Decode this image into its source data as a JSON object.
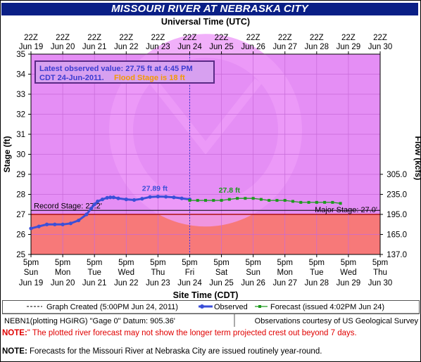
{
  "title": "MISSOURI RIVER AT NEBRASKA CITY",
  "chart_data": {
    "type": "line",
    "top_axis_label": "Universal Time (UTC)",
    "top_tick_labels": [
      [
        "22Z",
        "Jun 19"
      ],
      [
        "22Z",
        "Jun 20"
      ],
      [
        "22Z",
        "Jun 21"
      ],
      [
        "22Z",
        "Jun 22"
      ],
      [
        "22Z",
        "Jun 23"
      ],
      [
        "22Z",
        "Jun 24"
      ],
      [
        "22Z",
        "Jun 25"
      ],
      [
        "22Z",
        "Jun 26"
      ],
      [
        "22Z",
        "Jun 27"
      ],
      [
        "22Z",
        "Jun 28"
      ],
      [
        "22Z",
        "Jun 29"
      ],
      [
        "22Z",
        "Jun 30"
      ]
    ],
    "xlabel": "Site Time (CDT)",
    "bottom_tick_labels": [
      [
        "5pm",
        "Sun",
        "Jun 19"
      ],
      [
        "5pm",
        "Mon",
        "Jun 20"
      ],
      [
        "5pm",
        "Tue",
        "Jun 21"
      ],
      [
        "5pm",
        "Wed",
        "Jun 22"
      ],
      [
        "5pm",
        "Thu",
        "Jun 23"
      ],
      [
        "5pm",
        "Fri",
        "Jun 24"
      ],
      [
        "5pm",
        "Sat",
        "Jun 25"
      ],
      [
        "5pm",
        "Sun",
        "Jun 26"
      ],
      [
        "5pm",
        "Mon",
        "Jun 27"
      ],
      [
        "5pm",
        "Tue",
        "Jun 28"
      ],
      [
        "5pm",
        "Wed",
        "Jun 29"
      ],
      [
        "5pm",
        "Thu",
        "Jun 30"
      ]
    ],
    "ylabel": "Stage (ft)",
    "ylim": [
      25,
      35
    ],
    "yticks": [
      25,
      26,
      27,
      28,
      29,
      30,
      31,
      32,
      33,
      34,
      35
    ],
    "y2label": "Flow (kcfs)",
    "y2ticks": [
      {
        "stage": 25,
        "label": "137.0"
      },
      {
        "stage": 26,
        "label": "165.0"
      },
      {
        "stage": 27,
        "label": "195.0"
      },
      {
        "stage": 28,
        "label": "235.0"
      },
      {
        "stage": 29,
        "label": "305.0"
      }
    ],
    "x_unit": "days after Jun 19 5pm CDT",
    "xlim": [
      0,
      11
    ],
    "current_time_x": 5.0,
    "flood_zone": {
      "from": 25,
      "to": 27,
      "color": "#f77979"
    },
    "background_color": "#e58ef5",
    "record_stage": {
      "value": 27.2,
      "label": "Record Stage: 27.2'"
    },
    "major_stage": {
      "value": 27.0,
      "label": "Major Stage: 27.0'"
    },
    "info_box": {
      "line1": "Latest observed value: 27.75 ft at 4:45 PM",
      "line2a": "CDT 24-Jun-2011.",
      "line2b": "Flood Stage is 18 ft"
    },
    "series": [
      {
        "name": "Observed",
        "color": "#3b4fd8",
        "x": [
          0.0,
          0.25,
          0.5,
          0.75,
          1.0,
          1.25,
          1.5,
          1.75,
          1.9,
          2.0,
          2.1,
          2.25,
          2.4,
          2.5,
          2.6,
          2.75,
          3.0,
          3.25,
          3.5,
          3.75,
          4.0,
          4.25,
          4.5,
          4.75,
          5.0
        ],
        "y": [
          26.3,
          26.4,
          26.5,
          26.5,
          26.5,
          26.55,
          26.7,
          27.0,
          27.3,
          27.5,
          27.65,
          27.75,
          27.83,
          27.85,
          27.85,
          27.8,
          27.75,
          27.72,
          27.78,
          27.87,
          27.89,
          27.88,
          27.85,
          27.8,
          27.75
        ],
        "peak_label": {
          "x": 3.9,
          "y": 27.89,
          "text": "27.89 ft"
        }
      },
      {
        "name": "Forecast (issued 4:02PM Jun 24)",
        "color": "#1d9a1d",
        "x": [
          5.0,
          5.25,
          5.5,
          5.75,
          6.0,
          6.25,
          6.5,
          6.75,
          7.0,
          7.25,
          7.5,
          7.75,
          8.0,
          8.25,
          8.5,
          8.75,
          9.0,
          9.25,
          9.5,
          9.75
        ],
        "y": [
          27.7,
          27.7,
          27.7,
          27.7,
          27.7,
          27.75,
          27.8,
          27.8,
          27.8,
          27.75,
          27.7,
          27.7,
          27.7,
          27.65,
          27.6,
          27.6,
          27.6,
          27.6,
          27.6,
          27.55
        ],
        "peak_label": {
          "x": 6.25,
          "y": 27.8,
          "text": "27.8 ft"
        }
      }
    ],
    "legend": {
      "graph_created": "Graph Created (5:00PM Jun 24, 2011)",
      "observed": "Observed",
      "forecast": "Forecast (issued 4:02PM Jun 24)"
    },
    "watermark_text": "NATIONAL OCEANIC AND ATMOSPHERIC ADMINISTRATION"
  },
  "footer": {
    "gauge_info": "NEBN1(plotting HGIRG) \"Gage 0\" Datum: 905.36'",
    "courtesy": "Observations courtesy of US Geological Survey",
    "note1_label": "NOTE:",
    "note1_text": "\" The plotted river forecast may not show the longer term projected crest out beyond 7 days.",
    "note2_label": "NOTE:",
    "note2_text": " Forecasts for the Missouri River at Nebraska City are issued routinely year-round."
  }
}
